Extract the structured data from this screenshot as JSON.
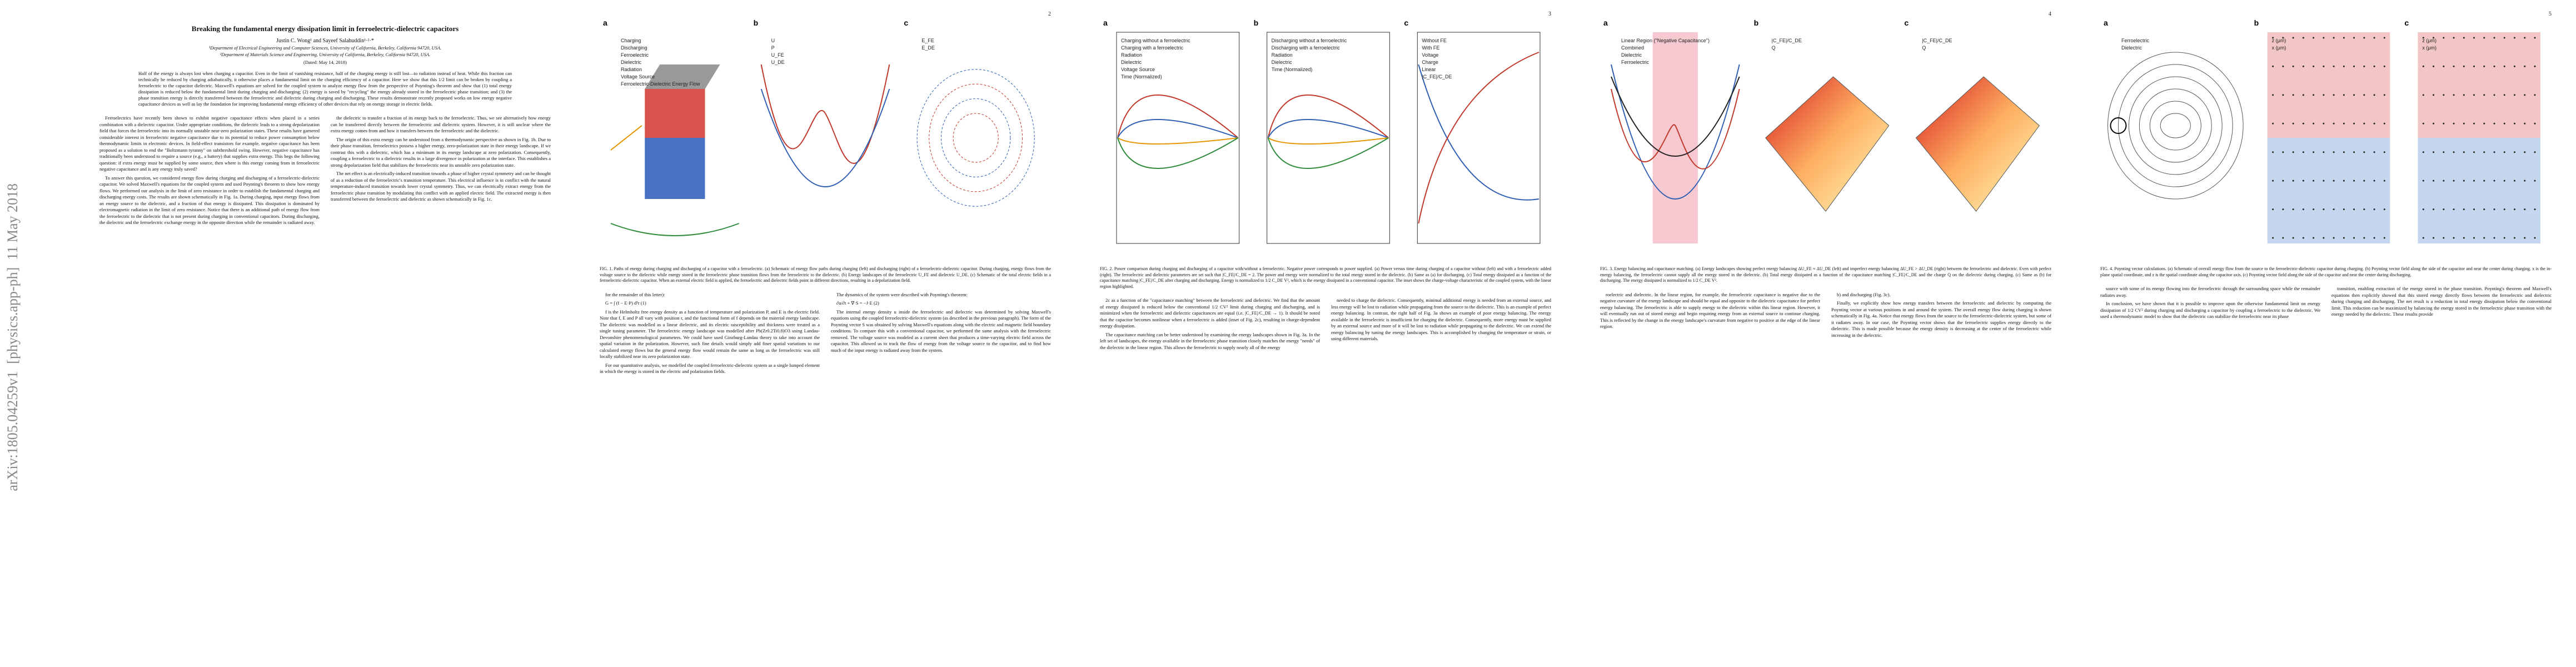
{
  "arxiv_stamp": "arXiv:1805.04259v1  [physics.app-ph]  11 May 2018",
  "pages": [
    {
      "title": "Breaking the fundamental energy dissipation limit in ferroelectric-dielectric capacitors",
      "authors": "Justin C. Wong¹ and Sayeef Salahuddin¹·²·*",
      "affiliations": [
        "¹Department of Electrical Engineering and Computer Sciences, University of California, Berkeley, California 94720, USA.",
        "²Department of Materials Science and Engineering, University of California, Berkeley, California 94720, USA."
      ],
      "date": "(Dated: May 14, 2018)",
      "abstract": "Half of the energy is always lost when charging a capacitor. Even in the limit of vanishing resistance, half of the charging energy is still lost—to radiation instead of heat. While this fraction can technically be reduced by charging adiabatically, it otherwise places a fundamental limit on the charging efficiency of a capacitor. Here we show that this 1/2 limit can be broken by coupling a ferroelectric to the capacitor dielectric. Maxwell's equations are solved for the coupled system to analyze energy flow from the perspective of Poynting's theorem and show that (1) total energy dissipation is reduced below the fundamental limit during charging and discharging; (2) energy is saved by \"recycling\" the energy already stored in the ferroelectric phase transition; and (3) the phase transition energy is directly transferred between the ferroelectric and dielectric during charging and discharging. These results demonstrate recently proposed works on low energy negative capacitance devices as well as lay the foundation for improving fundamental energy efficiency of other devices that rely on energy storage in electric fields.",
      "columns": [
        [
          "Ferroelectrics have recently been shown to exhibit negative capacitance effects when placed in a series combination with a dielectric capacitor. Under appropriate conditions, the dielectric leads to a strong depolarization field that forces the ferroelectric into its normally unstable near-zero polarization states. These results have garnered considerable interest in ferroelectric negative capacitance due to its potential to reduce power consumption below thermodynamic limits in electronic devices. In field-effect transistors for example, negative capacitance has been proposed as a solution to end the \"Boltzmann tyranny\" on subthreshold swing. However, negative capacitance has traditionally been understood to require a source (e.g., a battery) that supplies extra energy. This begs the following question: if extra energy must be supplied by some source, then where is this energy coming from in ferroelectric negative capacitance and is any energy truly saved?",
          "To answer this question, we considered energy flow during charging and discharging of a ferroelectric-dielectric capacitor. We solved Maxwell's equations for the coupled system and used Poynting's theorem to show how energy flows. We performed our analysis in the limit of zero resistance in order to establish the fundamental charging and discharging energy costs. The results are shown schematically in Fig. 1a. During charging, input energy flows from an energy source to the dielectric, and a fraction of that energy is dissipated. This dissipation is dominated by electromagnetic radiation in the limit of zero resistance. Notice that there is an additional path of energy flow from the ferroelectric to the dielectric that is not present during charging in conventional capacitors. During discharging, the dielectric and the ferroelectric exchange energy in the opposite direction while the remainder is radiated away."
        ],
        [
          "the dielectric to transfer a fraction of its energy back to the ferroelectric. Thus, we see alternatively how energy can be transferred directly between the ferroelectric and dielectric system. However, it is still unclear where the extra energy comes from and how it transfers between the ferroelectric and the dielectric.",
          "The origin of this extra energy can be understood from a thermodynamic perspective as shown in Fig. 1b. Due to their phase transition, ferroelectrics possess a higher energy, zero-polarization state in their energy landscape. If we contrast this with a dielectric, which has a minimum in its energy landscape at zero polarization. Consequently, coupling a ferroelectric to a dielectric results in a large divergence in polarization at the interface. This establishes a strong depolarization field that stabilizes the ferroelectric near its unstable zero polarization state.",
          "The net effect is an electrically-induced transition towards a phase of higher crystal symmetry and can be thought of as a reduction of the ferroelectric's transition temperature. This electrical influence is in conflict with the natural temperature-induced transition towards lower crystal symmetry. Thus, we can electrically extract energy from the ferroelectric phase transition by modulating this conflict with an applied electric field. The extracted energy is then transferred between the ferroelectric and dielectric as shown schematically in Fig. 1c."
        ]
      ]
    },
    {
      "number": 2,
      "figure": [
        {
          "label": "a",
          "texts": [
            "Charging",
            "Discharging",
            "Ferroelectric",
            "Dielectric",
            "Radiation",
            "Voltage Source",
            "Ferroelectric-Dielectric Energy Flow"
          ]
        },
        {
          "label": "b",
          "texts": [
            "U",
            "P",
            "U_FE",
            "U_DE"
          ]
        },
        {
          "label": "c",
          "texts": [
            "E_FE",
            "E_DE"
          ]
        }
      ],
      "caption": "FIG. 1. Paths of energy during charging and discharging of a capacitor with a ferroelectric. (a) Schematic of energy flow paths during charging (left) and discharging (right) of a ferroelectric-dielectric capacitor. During charging, energy flows from the voltage source to the dielectric while energy stored in the ferroelectric phase transition flows from the ferroelectric to the dielectric. (b) Energy landscapes of the ferroelectric U_FE and dielectric U_DE. (c) Schematic of the total electric fields in a ferroelectric-dielectric capacitor. When an external electric field is applied, the ferroelectric and dielectric fields point in different directions, resulting in a depolarization field.",
      "columns": [
        [
          "for the remainder of this letter):",
          "G = ∫ (f − E·P) d³r      (1)",
          "f is the Helmholtz free energy density as a function of temperature and polarization P, and E is the electric field. Note that f, E and P all vary with position r, and the functional form of f depends on the material energy landscape. The dielectric was modelled as a linear dielectric, and its electric susceptibility and thickness were treated as a single tuning parameter. The ferroelectric energy landscape was modelled after Pb(Zr0.2Ti0.8)O3 using Landau-Devonshire phenomenological parameters. We could have used Ginzburg-Landau theory to take into account the spatial variation in the polarization. However, such fine details would simply add finer spatial variations to our calculated energy flows but the general energy flow would remain the same as long as the ferroelectric was still locally stabilized near its zero polarization state.",
          "For our quantitative analysis, we modelled the coupled ferroelectric-dielectric system as a single lumped element in which the energy is stored in the electric and polarization fields."
        ],
        [
          "The dynamics of the system were described with Poynting's theorem:",
          "∂u/∂t + ∇·S = −J·E      (2)",
          "The internal energy density u inside the ferroelectric and dielectric was determined by solving Maxwell's equations using the coupled ferroelectric-dielectric system (as described in the previous paragraph). The form of the Poynting vector S was obtained by solving Maxwell's equations along with the electric and magnetic field boundary conditions. To compare this with a conventional capacitor, we performed the same analysis with the ferroelectric removed. The voltage source was modeled as a current sheet that produces a time-varying electric field across the capacitor. This allowed us to track the flow of energy from the voltage source to the capacitor, and to find how much of the input energy is radiated away from the system."
        ]
      ]
    },
    {
      "number": 3,
      "figure": [
        {
          "label": "a",
          "texts": [
            "Charging without a ferroelectric",
            "Charging with a ferroelectric",
            "Radiation",
            "Dielectric",
            "Voltage Source",
            "Time (Normalized)"
          ]
        },
        {
          "label": "b",
          "texts": [
            "Discharging without a ferroelectric",
            "Discharging with a ferroelectric",
            "Radiation",
            "Dielectric",
            "Time (Normalized)"
          ]
        },
        {
          "label": "c",
          "texts": [
            "Without FE",
            "With FE",
            "Voltage",
            "Charge",
            "Linear",
            "|C_FE|/C_DE"
          ]
        }
      ],
      "caption": "FIG. 2. Power comparison during charging and discharging of a capacitor with/without a ferroelectric. Negative power corresponds to power supplied. (a) Power versus time during charging of a capacitor without (left) and with a ferroelectric added (right). The ferroelectric and dielectric parameters are set such that |C_FE|/C_DE = 2. The power and energy were normalized to the total energy stored in the dielectric. (b) Same as (a) for discharging. (c) Total energy dissipated as a function of the capacitance matching |C_FE|/C_DE after charging and discharging. Energy is normalized to 1/2 C_DE V², which is the energy dissipated in a conventional capacitor. The inset shows the charge-voltage characteristic of the coupled system, with the linear region highlighted.",
      "columns": [
        [
          "2c as a function of the \"capacitance matching\" between the ferroelectric and dielectric. We find that the amount of energy dissipated is reduced below the conventional 1/2 CV² limit during charging and discharging, and is minimized when the ferroelectric and dielectric capacitances are equal (i.e. |C_FE|/C_DE → 1). It should be noted that the capacitor becomes nonlinear when a ferroelectric is added (inset of Fig. 2c), resulting in charge-dependent energy dissipation.",
          "The capacitance matching can be better understood by examining the energy landscapes shown in Fig. 3a. In the left set of landscapes, the energy available in the ferroelectric phase transition closely matches the energy \"needs\" of the dielectric in the linear region. This allows the ferroelectric to supply nearly all of the energy"
        ],
        [
          "needed to charge the dielectric. Consequently, minimal additional energy is needed from an external source, and less energy will be lost to radiation while propagating from the source to the dielectric. This is an example of perfect energy balancing. In contrast, the right half of Fig. 3a shows an example of poor energy balancing. The energy available in the ferroelectric is insufficient for charging the dielectric. Consequently, more energy must be supplied by an external source and more of it will be lost to radiation while propagating to the dielectric. We can extend the energy balancing by tuning the energy landscapes. This is accomplished by changing the temperature or strain, or using different materials."
        ]
      ]
    },
    {
      "number": 4,
      "figure": [
        {
          "label": "a",
          "texts": [
            "Linear Region (\"Negative Capacitance\")",
            "Combined",
            "Dielectric",
            "Ferroelectric"
          ]
        },
        {
          "label": "b",
          "texts": [
            "|C_FE|/C_DE",
            "Q"
          ]
        },
        {
          "label": "c",
          "texts": [
            "|C_FE|/C_DE",
            "Q"
          ]
        }
      ],
      "caption": "FIG. 3. Energy balancing and capacitance matching. (a) Energy landscapes showing perfect energy balancing ΔU_FE ≈ ΔU_DE (left) and imperfect energy balancing ΔU_FE > ΔU_DE (right) between the ferroelectric and dielectric. Even with perfect energy balancing, the ferroelectric cannot supply all the energy stored in the dielectric. (b) Total energy dissipated as a function of the capacitance matching |C_FE|/C_DE and the charge Q on the dielectric during charging. (c) Same as (b) for discharging. The energy dissipated is normalized to 1/2 C_DE V².",
      "columns": [
        [
          "roelectric and dielectric. In the linear region, for example, the ferroelectric capacitance is negative due to the negative curvature of the energy landscape and should be equal and opposite to the dielectric capacitance for perfect energy balancing. The ferroelectric is able to supply energy to the dielectric within this linear region. However, it will eventually run out of stored energy and begin requiring energy from an external source to continue charging. This is reflected by the change in the energy landscape's curvature from negative to positive at the edge of the linear region."
        ],
        [
          "b) and discharging (Fig. 3c).",
          "Finally, we explicitly show how energy transfers between the ferroelectric and dielectric by computing the Poynting vector at various positions in and around the system. The overall energy flow during charging is shown schematically in Fig. 4a. Notice that energy flows from the source to the ferroelectric-dielectric system, but some of it radiates away. In our case, the Poynting vector shows that the ferroelectric supplies energy directly to the dielectric. This is made possible because the energy density is decreasing at the center of the ferroelectric while increasing in the dielectric."
        ]
      ]
    },
    {
      "number": 5,
      "figure": [
        {
          "label": "a",
          "texts": [
            "Ferroelectric",
            "Dielectric"
          ]
        },
        {
          "label": "b",
          "texts": [
            "z (μm)",
            "x (μm)"
          ]
        },
        {
          "label": "c",
          "texts": [
            "z (μm)",
            "x (μm)"
          ]
        }
      ],
      "caption": "FIG. 4. Poynting vector calculations. (a) Schematic of overall energy flow from the source to the ferroelectric-dielectric capacitor during charging. (b) Poynting vector field along the side of the capacitor and near the center during charging. x is the in-plane spatial coordinate, and z is the spatial coordinate along the capacitor axis. (c) Poynting vector field along the side of the capacitor and near the center during discharging.",
      "columns": [
        [
          "source with some of its energy flowing into the ferroelectric through the surrounding space while the remainder radiates away.",
          "In conclusion, we have shown that it is possible to improve upon the otherwise fundamental limit on energy dissipation of 1/2 CV² during charging and discharging a capacitor by coupling a ferroelectric to the dielectric. We used a thermodynamic model to show that the dielectric can stabilize the ferroelectric near its phase"
        ],
        [
          "transition, enabling extraction of the energy stored in the phase transition. Poynting's theorem and Maxwell's equations then explicitly showed that this stored energy directly flows between the ferroelectric and dielectric during charging and discharging. The net result is a reduction in total energy dissipation below the conventional limit. This reduction can be maximized by balancing the energy stored in the ferroelectric phase transition with the energy needed by the dielectric. These results provide"
        ]
      ]
    }
  ]
}
